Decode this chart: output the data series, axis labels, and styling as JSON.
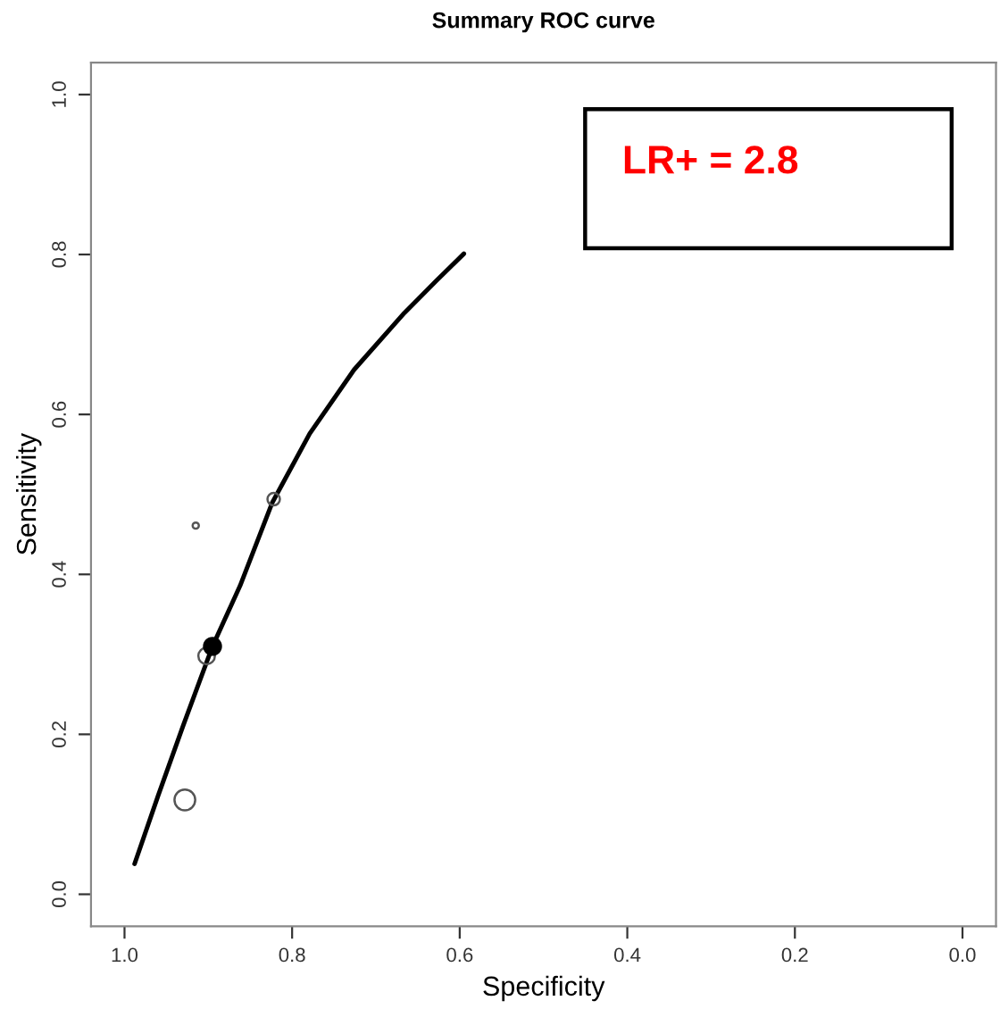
{
  "chart_data": {
    "type": "scatter",
    "title": "Summary ROC curve",
    "xlabel": "Specificity",
    "ylabel": "Sensitivity",
    "xlim": [
      1.04,
      -0.04
    ],
    "ylim": [
      -0.04,
      1.04
    ],
    "xticks": [
      {
        "value": 1,
        "label": "1.0"
      },
      0.8,
      0.6,
      0.4,
      0.2,
      {
        "value": 0,
        "label": "0.0"
      }
    ],
    "yticks": [
      {
        "value": 0,
        "label": "0.0"
      },
      0.2,
      0.4,
      0.6,
      0.8,
      {
        "value": 1,
        "label": "1.0"
      }
    ],
    "grid": false,
    "legend": false,
    "annotations": [
      "LR+ = 2.8"
    ],
    "series": [
      {
        "type": "line",
        "color": "#000000",
        "x": [
          0.988,
          0.96,
          0.93,
          0.895,
          0.862,
          0.824,
          0.779,
          0.726,
          0.666,
          0.628,
          0.595
        ],
        "values": [
          0.038,
          0.123,
          0.211,
          0.31,
          0.386,
          0.489,
          0.576,
          0.656,
          0.727,
          0.767,
          0.801
        ]
      },
      {
        "type": "bubble",
        "color": "#555555",
        "marker": "circle",
        "x": [
          0.928,
          0.902,
          0.822,
          0.915
        ],
        "values": [
          0.118,
          0.298,
          0.494,
          0.461
        ],
        "sizes": [
          1,
          0.64,
          0.36,
          0.09
        ]
      },
      {
        "color": "#000000",
        "marker": "circle",
        "x": [
          0.895
        ],
        "values": [
          0.31
        ]
      }
    ]
  }
}
